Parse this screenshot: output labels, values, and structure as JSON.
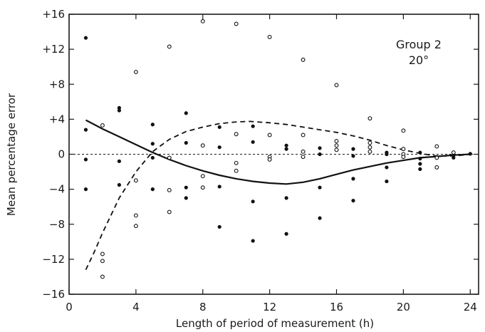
{
  "chart_data": {
    "type": "scatter",
    "xlabel": "Length of period of measurement (h)",
    "ylabel": "Mean percentage error",
    "xlim": [
      0,
      24.5
    ],
    "ylim": [
      -16,
      16
    ],
    "x_ticks": [
      0,
      4,
      8,
      12,
      16,
      20,
      24
    ],
    "x_tick_labels": [
      "0",
      "4",
      "8",
      "12",
      "16",
      "20",
      "24"
    ],
    "y_ticks": [
      16,
      12,
      8,
      4,
      0,
      -4,
      -8,
      -12,
      -16
    ],
    "y_tick_labels": [
      "+16",
      "+12",
      "+8",
      "+4",
      "0",
      "−4",
      "−8",
      "−12",
      "−16"
    ],
    "annotation": {
      "line1": "Group 2",
      "line2": "20°"
    },
    "reference_line_y": 0,
    "series": [
      {
        "marker": "filled-circle",
        "points": [
          [
            1,
            13.3
          ],
          [
            1,
            2.8
          ],
          [
            1,
            -0.6
          ],
          [
            1,
            -4.0
          ],
          [
            3,
            5.3
          ],
          [
            3,
            5.0
          ],
          [
            3,
            -0.8
          ],
          [
            3,
            -3.5
          ],
          [
            5,
            3.4
          ],
          [
            5,
            1.2
          ],
          [
            5,
            -0.4
          ],
          [
            5,
            -4.0
          ],
          [
            7,
            4.7
          ],
          [
            7,
            1.3
          ],
          [
            7,
            -3.8
          ],
          [
            7,
            -5.0
          ],
          [
            9,
            3.1
          ],
          [
            9,
            0.8
          ],
          [
            9,
            -3.7
          ],
          [
            9,
            -8.3
          ],
          [
            11,
            3.2
          ],
          [
            11,
            1.4
          ],
          [
            11,
            -5.4
          ],
          [
            11,
            -9.9
          ],
          [
            13,
            1.0
          ],
          [
            13,
            0.6
          ],
          [
            13,
            -5.0
          ],
          [
            13,
            -9.1
          ],
          [
            15,
            0.7
          ],
          [
            15,
            0.0
          ],
          [
            15,
            -3.8
          ],
          [
            15,
            -7.3
          ],
          [
            17,
            0.6
          ],
          [
            17,
            -0.2
          ],
          [
            17,
            -2.8
          ],
          [
            17,
            -5.3
          ],
          [
            19,
            0.2
          ],
          [
            19,
            0.0
          ],
          [
            19,
            -1.5
          ],
          [
            19,
            -3.1
          ],
          [
            21,
            0.2
          ],
          [
            21,
            -0.5
          ],
          [
            21,
            -1.1
          ],
          [
            21,
            -1.7
          ],
          [
            22,
            -0.3
          ],
          [
            23,
            -0.1
          ],
          [
            23,
            -0.4
          ],
          [
            24,
            0.05
          ]
        ]
      },
      {
        "marker": "open-circle",
        "points": [
          [
            2,
            3.3
          ],
          [
            2,
            -11.4
          ],
          [
            2,
            -12.2
          ],
          [
            2,
            -14.0
          ],
          [
            4,
            9.4
          ],
          [
            4,
            -3.0
          ],
          [
            4,
            -7.0
          ],
          [
            4,
            -8.2
          ],
          [
            6,
            12.3
          ],
          [
            6,
            -0.4
          ],
          [
            6,
            -4.1
          ],
          [
            6,
            -6.6
          ],
          [
            8,
            15.2
          ],
          [
            8,
            1.0
          ],
          [
            8,
            -2.5
          ],
          [
            8,
            -3.8
          ],
          [
            10,
            14.9
          ],
          [
            10,
            2.3
          ],
          [
            10,
            -1.0
          ],
          [
            10,
            -1.9
          ],
          [
            12,
            13.4
          ],
          [
            12,
            2.2
          ],
          [
            12,
            -0.3
          ],
          [
            12,
            -0.6
          ],
          [
            14,
            10.8
          ],
          [
            14,
            2.2
          ],
          [
            14,
            0.3
          ],
          [
            14,
            -0.3
          ],
          [
            16,
            7.9
          ],
          [
            16,
            1.5
          ],
          [
            16,
            1.0
          ],
          [
            16,
            0.5
          ],
          [
            18,
            4.1
          ],
          [
            18,
            1.3
          ],
          [
            18,
            0.8
          ],
          [
            18,
            0.3
          ],
          [
            20,
            2.7
          ],
          [
            20,
            0.6
          ],
          [
            20,
            0.0
          ],
          [
            20,
            -0.3
          ],
          [
            22,
            0.9
          ],
          [
            22,
            -0.4
          ],
          [
            22,
            -1.5
          ],
          [
            23,
            0.2
          ]
        ]
      },
      {
        "style": "solid-line",
        "points": [
          [
            1,
            3.9
          ],
          [
            2,
            2.9
          ],
          [
            3,
            2.0
          ],
          [
            4,
            1.1
          ],
          [
            5,
            0.2
          ],
          [
            6,
            -0.6
          ],
          [
            7,
            -1.3
          ],
          [
            8,
            -1.9
          ],
          [
            9,
            -2.4
          ],
          [
            10,
            -2.8
          ],
          [
            11,
            -3.1
          ],
          [
            12,
            -3.3
          ],
          [
            13,
            -3.4
          ],
          [
            14,
            -3.2
          ],
          [
            15,
            -2.8
          ],
          [
            16,
            -2.3
          ],
          [
            17,
            -1.8
          ],
          [
            18,
            -1.4
          ],
          [
            19,
            -1.0
          ],
          [
            20,
            -0.7
          ],
          [
            21,
            -0.4
          ],
          [
            22,
            -0.25
          ],
          [
            23,
            -0.1
          ],
          [
            24,
            0.0
          ]
        ]
      },
      {
        "style": "dashed-line",
        "points": [
          [
            1,
            -13.2
          ],
          [
            1.5,
            -11.2
          ],
          [
            2,
            -9.0
          ],
          [
            3,
            -5.0
          ],
          [
            4,
            -2.0
          ],
          [
            5,
            0.3
          ],
          [
            6,
            1.7
          ],
          [
            7,
            2.6
          ],
          [
            8,
            3.1
          ],
          [
            9,
            3.5
          ],
          [
            10,
            3.7
          ],
          [
            10.8,
            3.75
          ],
          [
            12,
            3.6
          ],
          [
            13,
            3.4
          ],
          [
            14,
            3.1
          ],
          [
            15,
            2.8
          ],
          [
            16,
            2.5
          ],
          [
            17,
            2.1
          ],
          [
            18,
            1.6
          ],
          [
            19,
            1.0
          ],
          [
            20,
            0.5
          ],
          [
            21,
            0.1
          ],
          [
            22,
            -0.2
          ],
          [
            23,
            -0.2
          ],
          [
            24,
            0.0
          ]
        ]
      }
    ]
  }
}
